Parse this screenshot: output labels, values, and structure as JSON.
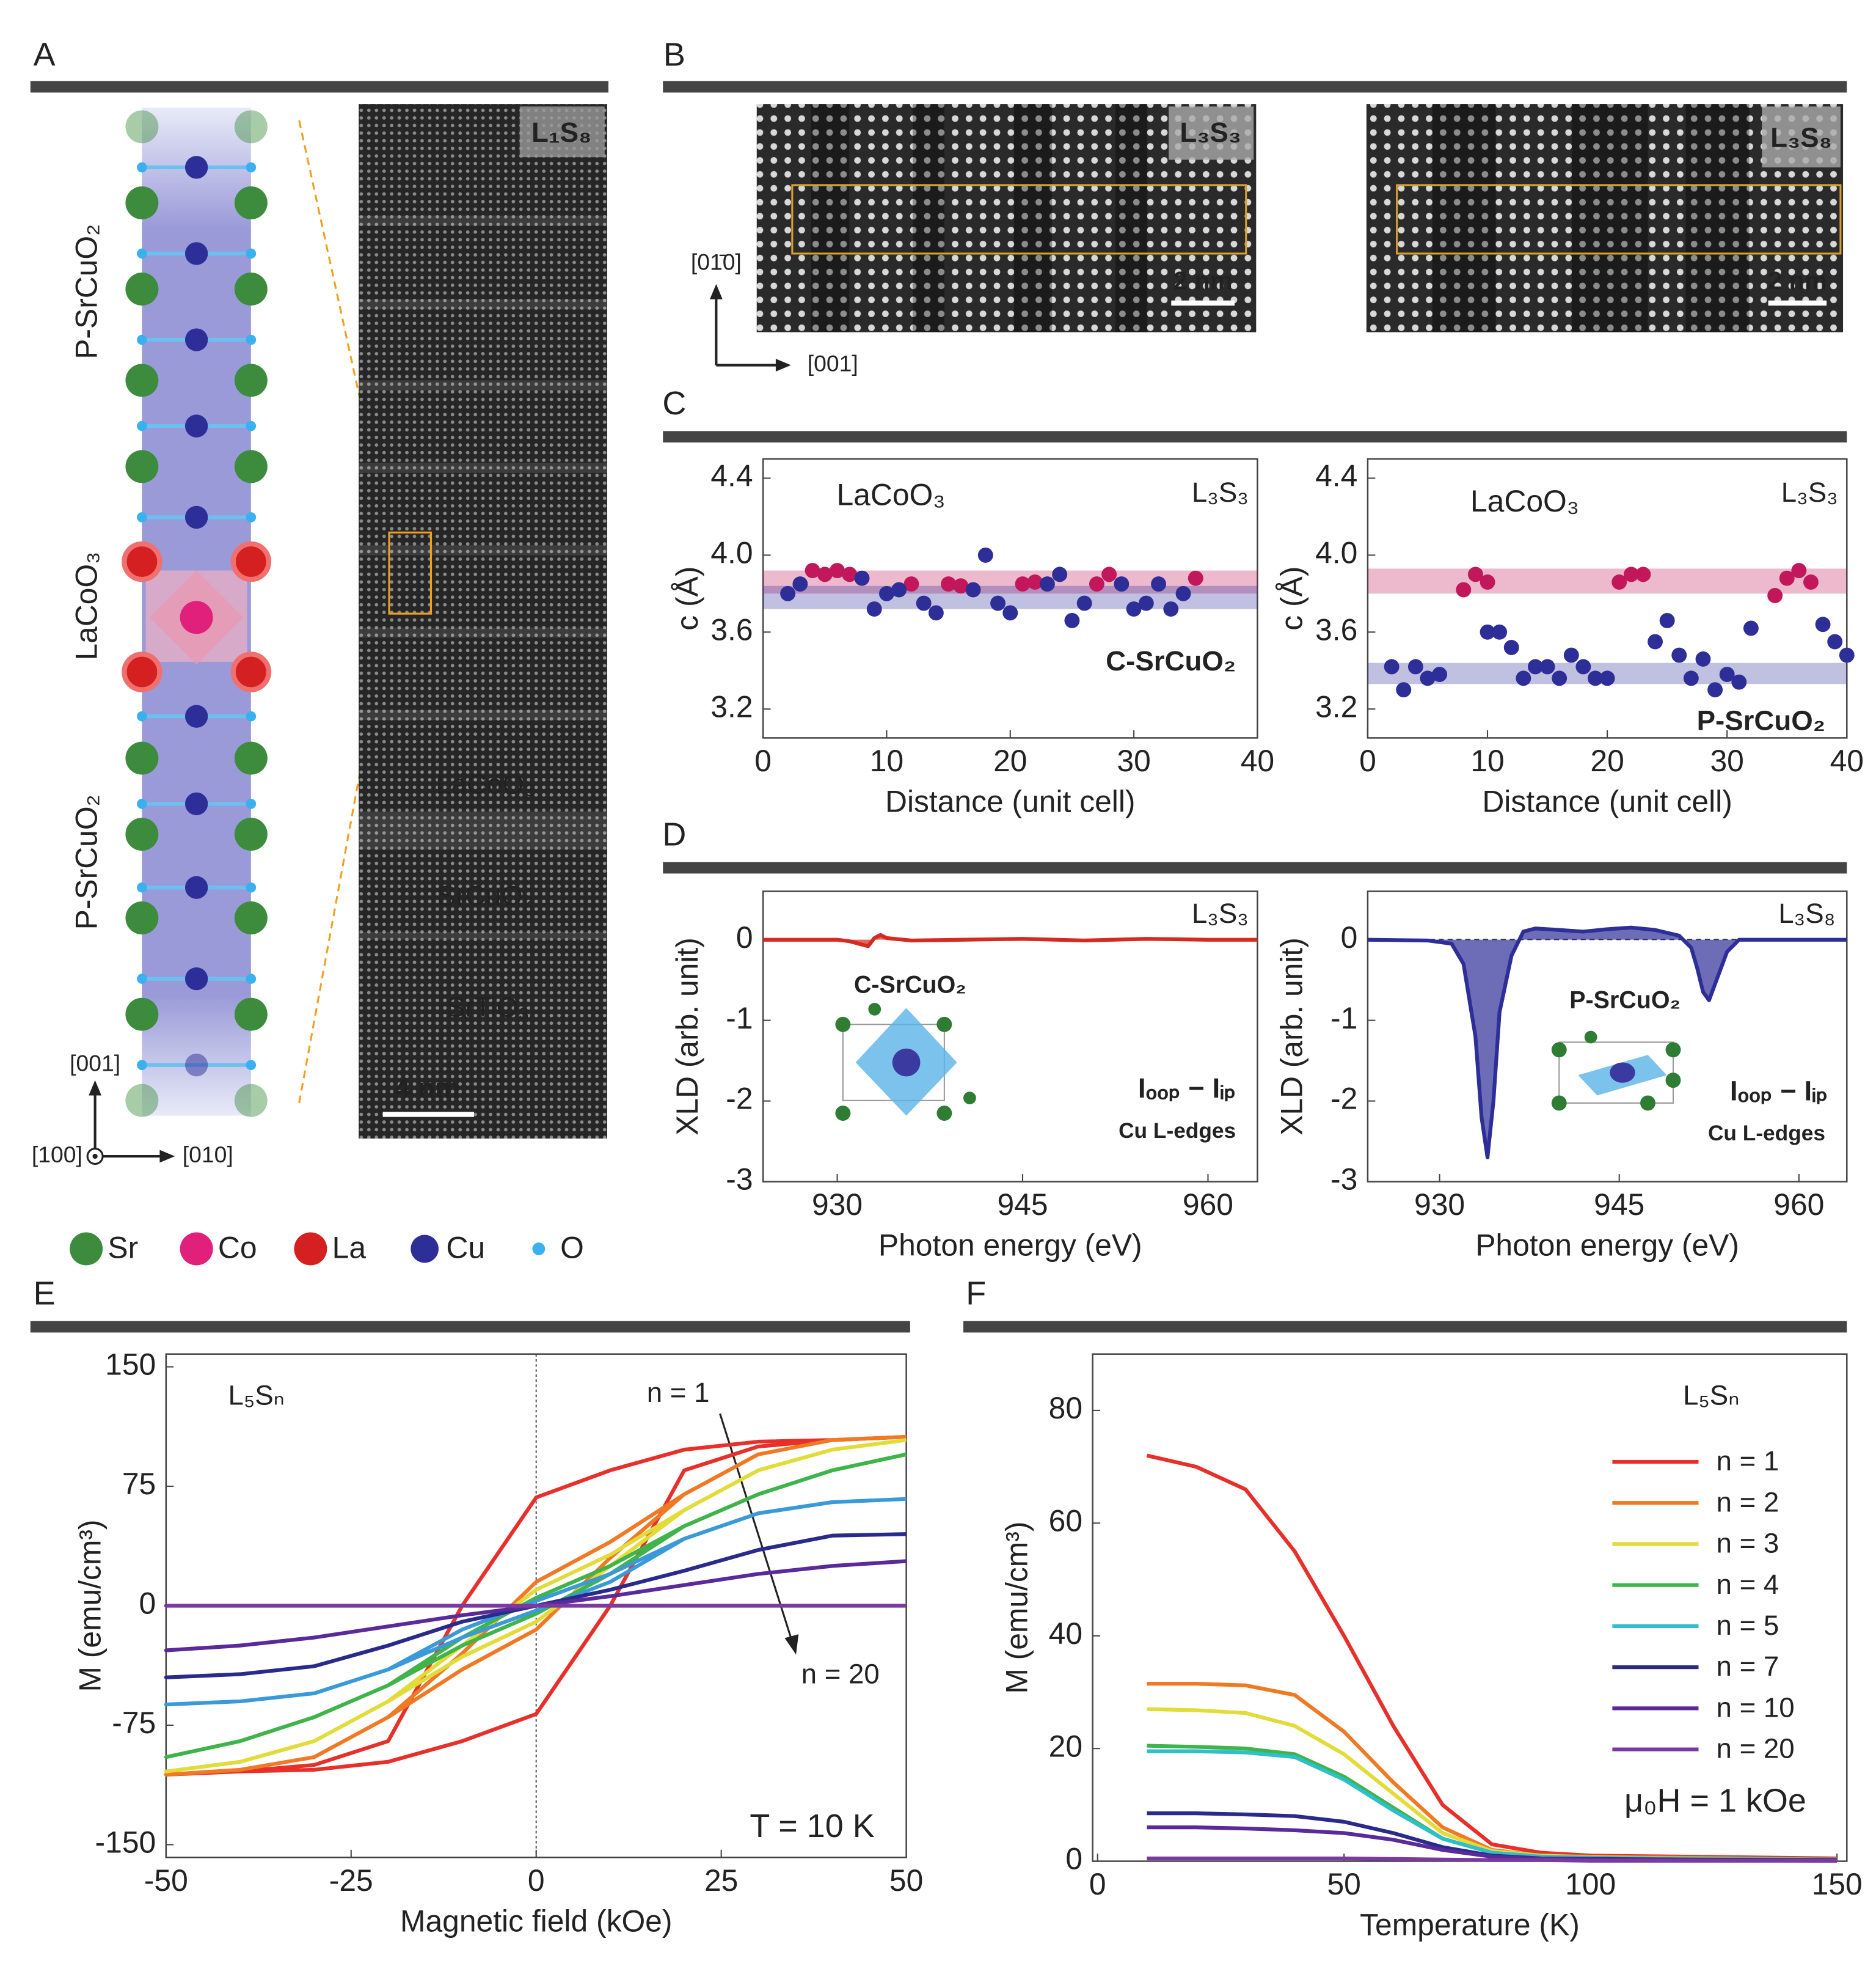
{
  "panel_labels": [
    "A",
    "B",
    "C",
    "D",
    "E",
    "F"
  ],
  "panel_a": {
    "layers": [
      "P-SrCuO₂",
      "LaCoO₃",
      "P-SrCuO₂"
    ],
    "sample": "L₁S₈",
    "tem_layers": [
      "LaCoO₃",
      "SrCuO₂",
      "SrTiO₃"
    ],
    "scale_bar": "4 nm",
    "axes": [
      "[001]",
      "[100]",
      "[010]"
    ]
  },
  "legend": [
    "Sr",
    "Co",
    "La",
    "Cu",
    "O"
  ],
  "panel_b": {
    "samples": [
      "L₃S₃",
      "L₃S₈"
    ],
    "scale_bars": [
      "2 nm",
      "2 nm"
    ],
    "axes": [
      "[01̄0]",
      "[001]"
    ]
  },
  "chart_data": [
    {
      "type": "scatter",
      "xlabel": "Distance (unit cell)",
      "ylabel": "c (Å)",
      "xlim": [
        0,
        40
      ],
      "xticks": [
        0,
        10,
        20,
        30,
        40
      ],
      "ylim": [
        3.05,
        4.5
      ],
      "yticks": [
        3.2,
        3.6,
        {
          "value": 4,
          "label": "4.0"
        },
        4.4
      ],
      "annotations": [
        "L₃S₃"
      ],
      "series": [
        {
          "name": "LaCoO₃",
          "color": "#c2185b",
          "band": [
            3.8,
            3.92
          ],
          "x": [
            4,
            5,
            6,
            7,
            12,
            15,
            16,
            21,
            22,
            27,
            28,
            35
          ],
          "values": [
            3.92,
            3.9,
            3.92,
            3.9,
            3.85,
            3.85,
            3.84,
            3.85,
            3.86,
            3.85,
            3.9,
            3.88
          ]
        },
        {
          "name": "C-SrCuO₂",
          "color": "#2e2e99",
          "band": [
            3.72,
            3.84
          ],
          "x": [
            2,
            3,
            8,
            9,
            10,
            11,
            13,
            14,
            17,
            18,
            19,
            20,
            23,
            24,
            25,
            26,
            29,
            30,
            31,
            32,
            33,
            34
          ],
          "values": [
            3.8,
            3.85,
            3.88,
            3.72,
            3.8,
            3.82,
            3.75,
            3.7,
            3.82,
            4.0,
            3.75,
            3.7,
            3.85,
            3.9,
            3.66,
            3.75,
            3.85,
            3.72,
            3.75,
            3.85,
            3.72,
            3.8
          ]
        }
      ]
    },
    {
      "type": "scatter",
      "xlabel": "Distance (unit cell)",
      "ylabel": "c (Å)",
      "xlim": [
        0,
        40
      ],
      "xticks": [
        0,
        10,
        20,
        30,
        40
      ],
      "ylim": [
        3.05,
        4.5
      ],
      "yticks": [
        3.2,
        3.6,
        {
          "value": 4,
          "label": "4.0"
        },
        4.4
      ],
      "annotations": [
        "L₃S₃"
      ],
      "series": [
        {
          "name": "LaCoO₃",
          "color": "#c2185b",
          "band": [
            3.8,
            3.93
          ],
          "x": [
            8,
            9,
            10,
            21,
            22,
            23,
            34,
            35,
            36,
            37
          ],
          "values": [
            3.82,
            3.9,
            3.86,
            3.86,
            3.9,
            3.9,
            3.79,
            3.88,
            3.92,
            3.86
          ]
        },
        {
          "name": "P-SrCuO₂",
          "color": "#2e2e99",
          "band": [
            3.33,
            3.44
          ],
          "x": [
            2,
            3,
            4,
            5,
            6,
            10,
            11,
            12,
            13,
            14,
            15,
            16,
            17,
            18,
            19,
            20,
            24,
            25,
            26,
            27,
            28,
            29,
            30,
            31,
            32,
            38,
            39,
            40
          ],
          "values": [
            3.42,
            3.3,
            3.42,
            3.36,
            3.38,
            3.6,
            3.6,
            3.52,
            3.36,
            3.42,
            3.42,
            3.36,
            3.48,
            3.42,
            3.36,
            3.36,
            3.55,
            3.66,
            3.48,
            3.36,
            3.46,
            3.3,
            3.38,
            3.34,
            3.62,
            3.64,
            3.55,
            3.48
          ]
        }
      ]
    },
    {
      "type": "area",
      "xlabel": "Photon energy (eV)",
      "ylabel": "XLD (arb. unit)",
      "xlim": [
        924,
        964
      ],
      "xticks": [
        930,
        945,
        960
      ],
      "ylim": [
        -3,
        0.6
      ],
      "yticks": [
        -3,
        -2,
        -1,
        0
      ],
      "annotations": [
        "L₃S₃",
        "C-SrCuO₂",
        "Iₒₒₚ − Iᵢₚ",
        "Cu L-edges"
      ],
      "series": [
        {
          "color": "#d42a20",
          "x": [
            924,
            928,
            930,
            931,
            932,
            932.5,
            933,
            933.5,
            934,
            936,
            940,
            945,
            950,
            955,
            960,
            964
          ],
          "values": [
            0,
            0,
            0,
            -0.02,
            -0.06,
            -0.08,
            0.02,
            0.06,
            0.02,
            -0.01,
            0,
            0.01,
            -0.01,
            0.01,
            0,
            0
          ]
        }
      ]
    },
    {
      "type": "area",
      "xlabel": "Photon energy (eV)",
      "ylabel": "XLD (arb. unit)",
      "xlim": [
        924,
        964
      ],
      "xticks": [
        930,
        945,
        960
      ],
      "ylim": [
        -3,
        0.6
      ],
      "yticks": [
        -3,
        -2,
        -1,
        0
      ],
      "annotations": [
        "L₃S₈",
        "P-SrCuO₂",
        "Iₒₒₚ − Iᵢₚ",
        "Cu L-edges"
      ],
      "series": [
        {
          "color": "#2e2e99",
          "x": [
            924,
            929,
            931,
            932,
            933,
            933.5,
            934,
            934.5,
            935,
            936,
            937,
            938,
            940,
            942,
            944,
            946,
            948,
            950,
            951,
            951.5,
            952,
            952.5,
            953,
            954,
            955,
            957,
            960,
            964
          ],
          "values": [
            0,
            -0.01,
            -0.05,
            -0.3,
            -1.2,
            -2.2,
            -2.7,
            -2.0,
            -0.9,
            -0.2,
            0.1,
            0.14,
            0.12,
            0.1,
            0.13,
            0.15,
            0.12,
            0.05,
            -0.1,
            -0.35,
            -0.65,
            -0.75,
            -0.55,
            -0.15,
            0,
            0,
            0,
            0
          ]
        }
      ]
    },
    {
      "type": "line",
      "xlabel": "Magnetic field (kOe)",
      "ylabel": "M (emu/cm³)",
      "xlim": [
        -50,
        50
      ],
      "xticks": [
        -50,
        -25,
        0,
        25,
        50
      ],
      "ylim": [
        -158,
        158
      ],
      "yticks": [
        -150,
        -75,
        0,
        75,
        150
      ],
      "annotations": [
        "L₅Sₙ",
        "n = 1",
        "n = 20",
        "T = 10 K"
      ],
      "series": [
        {
          "color": "#e8302a",
          "x": [
            50,
            40,
            30,
            20,
            10,
            0,
            -10,
            -20,
            -30,
            -40,
            -50,
            -40,
            -30,
            -20,
            -10,
            0,
            10,
            20,
            30,
            40,
            50
          ],
          "values": [
            106,
            104,
            103,
            98,
            85,
            68,
            0,
            -85,
            -100,
            -104,
            -106,
            -104,
            -103,
            -98,
            -85,
            -68,
            0,
            85,
            100,
            104,
            106
          ]
        },
        {
          "color": "#f07a24",
          "x": [
            50,
            40,
            30,
            20,
            10,
            0,
            -10,
            -20,
            -30,
            -40,
            -50,
            -40,
            -30,
            -20,
            -10,
            0,
            10,
            20,
            30,
            40,
            50
          ],
          "values": [
            106,
            104,
            95,
            70,
            40,
            15,
            -30,
            -70,
            -95,
            -103,
            -106,
            -103,
            -95,
            -70,
            -40,
            -15,
            30,
            70,
            95,
            104,
            106
          ]
        },
        {
          "color": "#e2dc3a",
          "x": [
            50,
            40,
            30,
            20,
            10,
            0,
            -10,
            -20,
            -30,
            -40,
            -50,
            -40,
            -30,
            -20,
            -10,
            0,
            10,
            20,
            30,
            40,
            50
          ],
          "values": [
            104,
            98,
            85,
            60,
            32,
            10,
            -25,
            -60,
            -85,
            -98,
            -104,
            -98,
            -85,
            -60,
            -32,
            -10,
            25,
            60,
            85,
            98,
            104
          ]
        },
        {
          "color": "#3fb44a",
          "x": [
            50,
            40,
            30,
            20,
            10,
            0,
            -10,
            -20,
            -30,
            -40,
            -50,
            -40,
            -30,
            -20,
            -10,
            0,
            10,
            20,
            30,
            40,
            50
          ],
          "values": [
            95,
            85,
            70,
            50,
            25,
            5,
            -20,
            -50,
            -70,
            -85,
            -95,
            -85,
            -70,
            -50,
            -25,
            -5,
            20,
            50,
            70,
            85,
            95
          ]
        },
        {
          "color": "#3a9ad8",
          "x": [
            50,
            40,
            30,
            20,
            10,
            0,
            -10,
            -20,
            -30,
            -40,
            -50,
            -40,
            -30,
            -20,
            -10,
            0,
            10,
            20,
            30,
            40,
            50
          ],
          "values": [
            67,
            65,
            58,
            42,
            20,
            3,
            -15,
            -40,
            -55,
            -60,
            -62,
            -60,
            -55,
            -40,
            -20,
            -3,
            15,
            42,
            58,
            65,
            67
          ]
        },
        {
          "color": "#2a2a8c",
          "x": [
            50,
            40,
            30,
            20,
            10,
            0,
            -10,
            -20,
            -30,
            -40,
            -50,
            -40,
            -30,
            -20,
            -10,
            0,
            10,
            20,
            30,
            40,
            50
          ],
          "values": [
            45,
            44,
            35,
            22,
            10,
            0,
            -10,
            -25,
            -38,
            -43,
            -45,
            -43,
            -38,
            -25,
            -10,
            0,
            10,
            22,
            35,
            44,
            45
          ]
        },
        {
          "color": "#5a2a9a",
          "x": [
            50,
            40,
            30,
            20,
            10,
            0,
            -10,
            -20,
            -30,
            -40,
            -50,
            -40,
            -30,
            -20,
            -10,
            0,
            10,
            20,
            30,
            40,
            50
          ],
          "values": [
            28,
            25,
            20,
            13,
            6,
            0,
            -6,
            -13,
            -20,
            -25,
            -28,
            -25,
            -20,
            -13,
            -6,
            0,
            6,
            13,
            20,
            25,
            28
          ]
        },
        {
          "color": "#7a3aa0",
          "x": [
            50,
            40,
            30,
            20,
            10,
            0,
            -10,
            -20,
            -30,
            -40,
            -50,
            -40,
            -30,
            -20,
            -10,
            0,
            10,
            20,
            30,
            40,
            50
          ],
          "values": [
            0,
            0,
            0,
            0,
            0,
            0,
            0,
            0,
            0,
            0,
            0,
            0,
            0,
            0,
            0,
            0,
            0,
            0,
            0,
            0,
            0
          ]
        }
      ]
    },
    {
      "type": "line",
      "xlabel": "Temperature (K)",
      "ylabel": "M (emu/cm³)",
      "xlim": [
        -1,
        152
      ],
      "xticks": [
        0,
        50,
        100,
        150
      ],
      "ylim": [
        0,
        90
      ],
      "yticks": [
        0,
        20,
        40,
        60,
        80
      ],
      "legend": "upper right",
      "annotations": [
        "L₅Sₙ",
        "μ₀H = 1 kOe"
      ],
      "series": [
        {
          "name": "n = 1",
          "color": "#e8302a",
          "x": [
            10,
            20,
            30,
            40,
            50,
            60,
            70,
            80,
            90,
            100,
            120,
            150
          ],
          "values": [
            72,
            70,
            66,
            55,
            40,
            24,
            10,
            3,
            1.5,
            1,
            0.8,
            0.5
          ]
        },
        {
          "name": "n = 2",
          "color": "#f07a24",
          "x": [
            10,
            20,
            30,
            40,
            50,
            60,
            70,
            80,
            90,
            100,
            120,
            150
          ],
          "values": [
            31.5,
            31.5,
            31.2,
            29.5,
            23,
            14,
            6,
            2,
            1,
            0.8,
            0.6,
            0.3
          ]
        },
        {
          "name": "n = 3",
          "color": "#e2dc3a",
          "x": [
            10,
            20,
            30,
            40,
            50,
            60,
            70,
            80,
            90,
            100,
            120,
            150
          ],
          "values": [
            27,
            26.8,
            26.3,
            24,
            19,
            12,
            5,
            1.8,
            1,
            0.7,
            0.5,
            0.3
          ]
        },
        {
          "name": "n = 4",
          "color": "#3fb44a",
          "x": [
            10,
            20,
            30,
            40,
            50,
            60,
            70,
            80,
            90,
            100,
            120,
            150
          ],
          "values": [
            20.5,
            20.3,
            20,
            19,
            15,
            9.5,
            4,
            1.5,
            0.8,
            0.6,
            0.4,
            0.3
          ]
        },
        {
          "name": "n = 5",
          "color": "#2fbfc8",
          "x": [
            10,
            20,
            30,
            40,
            50,
            60,
            70,
            80,
            90,
            100,
            120,
            150
          ],
          "values": [
            19.5,
            19.5,
            19.3,
            18.5,
            14.5,
            9,
            4,
            1.5,
            0.8,
            0.6,
            0.4,
            0.3
          ]
        },
        {
          "name": "n = 7",
          "color": "#2a2a8c",
          "x": [
            10,
            20,
            30,
            40,
            50,
            60,
            70,
            80,
            90,
            100,
            120,
            150
          ],
          "values": [
            8.5,
            8.5,
            8.3,
            8,
            7,
            5,
            2.5,
            1,
            0.5,
            0.4,
            0.3,
            0.2
          ]
        },
        {
          "name": "n = 10",
          "color": "#5a2a9a",
          "x": [
            10,
            20,
            30,
            40,
            50,
            60,
            70,
            80,
            90,
            100,
            120,
            150
          ],
          "values": [
            6,
            6,
            5.8,
            5.5,
            5,
            3.8,
            2,
            0.8,
            0.4,
            0.3,
            0.2,
            0.1
          ]
        },
        {
          "name": "n = 20",
          "color": "#7a3aa0",
          "x": [
            10,
            20,
            30,
            40,
            50,
            60,
            70,
            80,
            90,
            100,
            120,
            150
          ],
          "values": [
            0.5,
            0.5,
            0.5,
            0.5,
            0.5,
            0.4,
            0.3,
            0.2,
            0.2,
            0.1,
            0.1,
            0.1
          ]
        }
      ]
    }
  ]
}
